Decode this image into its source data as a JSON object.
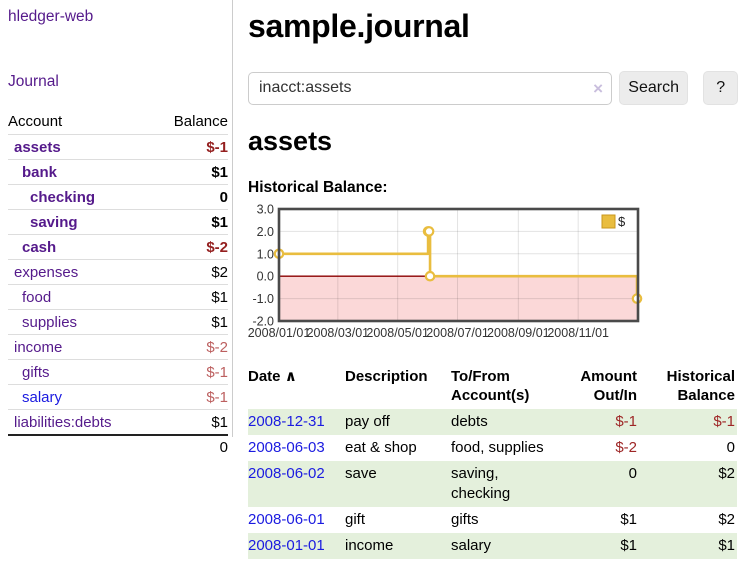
{
  "app": {
    "brand": "hledger-web"
  },
  "sidebar": {
    "journal_link": "Journal",
    "headers": {
      "account": "Account",
      "balance": "Balance"
    },
    "accounts": [
      {
        "name": "assets",
        "balance": "$-1",
        "indent": 1,
        "bold": true,
        "tone": "strong-neg"
      },
      {
        "name": "bank",
        "balance": "$1",
        "indent": 2,
        "bold": true,
        "tone": "normal"
      },
      {
        "name": "checking",
        "balance": "0",
        "indent": 3,
        "bold": true,
        "tone": "normal"
      },
      {
        "name": "saving",
        "balance": "$1",
        "indent": 3,
        "bold": true,
        "tone": "normal"
      },
      {
        "name": "cash",
        "balance": "$-2",
        "indent": 2,
        "bold": true,
        "tone": "strong-neg"
      },
      {
        "name": "expenses",
        "balance": "$2",
        "indent": 1,
        "bold": false,
        "tone": "normal"
      },
      {
        "name": "food",
        "balance": "$1",
        "indent": 2,
        "bold": false,
        "tone": "normal"
      },
      {
        "name": "supplies",
        "balance": "$1",
        "indent": 2,
        "bold": false,
        "tone": "normal"
      },
      {
        "name": "income",
        "balance": "$-2",
        "indent": 1,
        "bold": false,
        "tone": "soft-neg"
      },
      {
        "name": "gifts",
        "balance": "$-1",
        "indent": 2,
        "bold": false,
        "tone": "soft-neg"
      },
      {
        "name": "salary",
        "balance": "$-1",
        "indent": 2,
        "bold": false,
        "tone": "soft-neg",
        "blue": true
      },
      {
        "name": "liabilities:debts",
        "balance": "$1",
        "indent": 1,
        "bold": false,
        "tone": "normal"
      }
    ],
    "total": "0"
  },
  "main": {
    "title": "sample.journal",
    "search": {
      "value": "inacct:assets",
      "clear_icon": "×",
      "button_label": "Search",
      "help_label": "?"
    },
    "account_heading": "assets",
    "chart_label": "Historical Balance:"
  },
  "chart_data": {
    "type": "line",
    "step": true,
    "title": "Historical Balance",
    "series": [
      {
        "name": "$",
        "color": "#e9bd3f",
        "points": [
          [
            "2008/01/01",
            1
          ],
          [
            "2008/06/01",
            2
          ],
          [
            "2008/06/02",
            2
          ],
          [
            "2008/06/03",
            0
          ],
          [
            "2008/12/31",
            -1
          ]
        ]
      }
    ],
    "x_range": [
      "2008/01/01",
      "2009/01/01"
    ],
    "ylim": [
      -2,
      3
    ],
    "yticks": [
      "3.0",
      "2.0",
      "1.0",
      "0.0",
      "-1.0",
      "-2.0"
    ],
    "xticks": [
      "2008/01/01",
      "2008/03/01",
      "2008/05/01",
      "2008/07/01",
      "2008/09/01",
      "2008/11/01"
    ],
    "grid": true,
    "legend": {
      "position": "top-right",
      "label": "$"
    },
    "negative_region_fill": "#fbd8d8",
    "zero_line_color": "#8b0000",
    "border_color": "#4a4a4a"
  },
  "register": {
    "headers": {
      "date": "Date",
      "sort_icon": "∧",
      "description": "Description",
      "accounts": "To/From Account(s)",
      "amount": "Amount Out/In",
      "balance": "Historical Balance"
    },
    "rows": [
      {
        "date": "2008-12-31",
        "description": "pay off",
        "accounts": "debts",
        "amount": "$-1",
        "balance": "$-1",
        "amount_neg": true,
        "balance_neg": true
      },
      {
        "date": "2008-06-03",
        "description": "eat & shop",
        "accounts": "food, supplies",
        "amount": "$-2",
        "balance": "0",
        "amount_neg": true,
        "balance_neg": false
      },
      {
        "date": "2008-06-02",
        "description": "save",
        "accounts": "saving, checking",
        "amount": "0",
        "balance": "$2",
        "amount_neg": false,
        "balance_neg": false
      },
      {
        "date": "2008-06-01",
        "description": "gift",
        "accounts": "gifts",
        "amount": "$1",
        "balance": "$2",
        "amount_neg": false,
        "balance_neg": false
      },
      {
        "date": "2008-01-01",
        "description": "income",
        "accounts": "salary",
        "amount": "$1",
        "balance": "$1",
        "amount_neg": false,
        "balance_neg": false
      }
    ]
  }
}
